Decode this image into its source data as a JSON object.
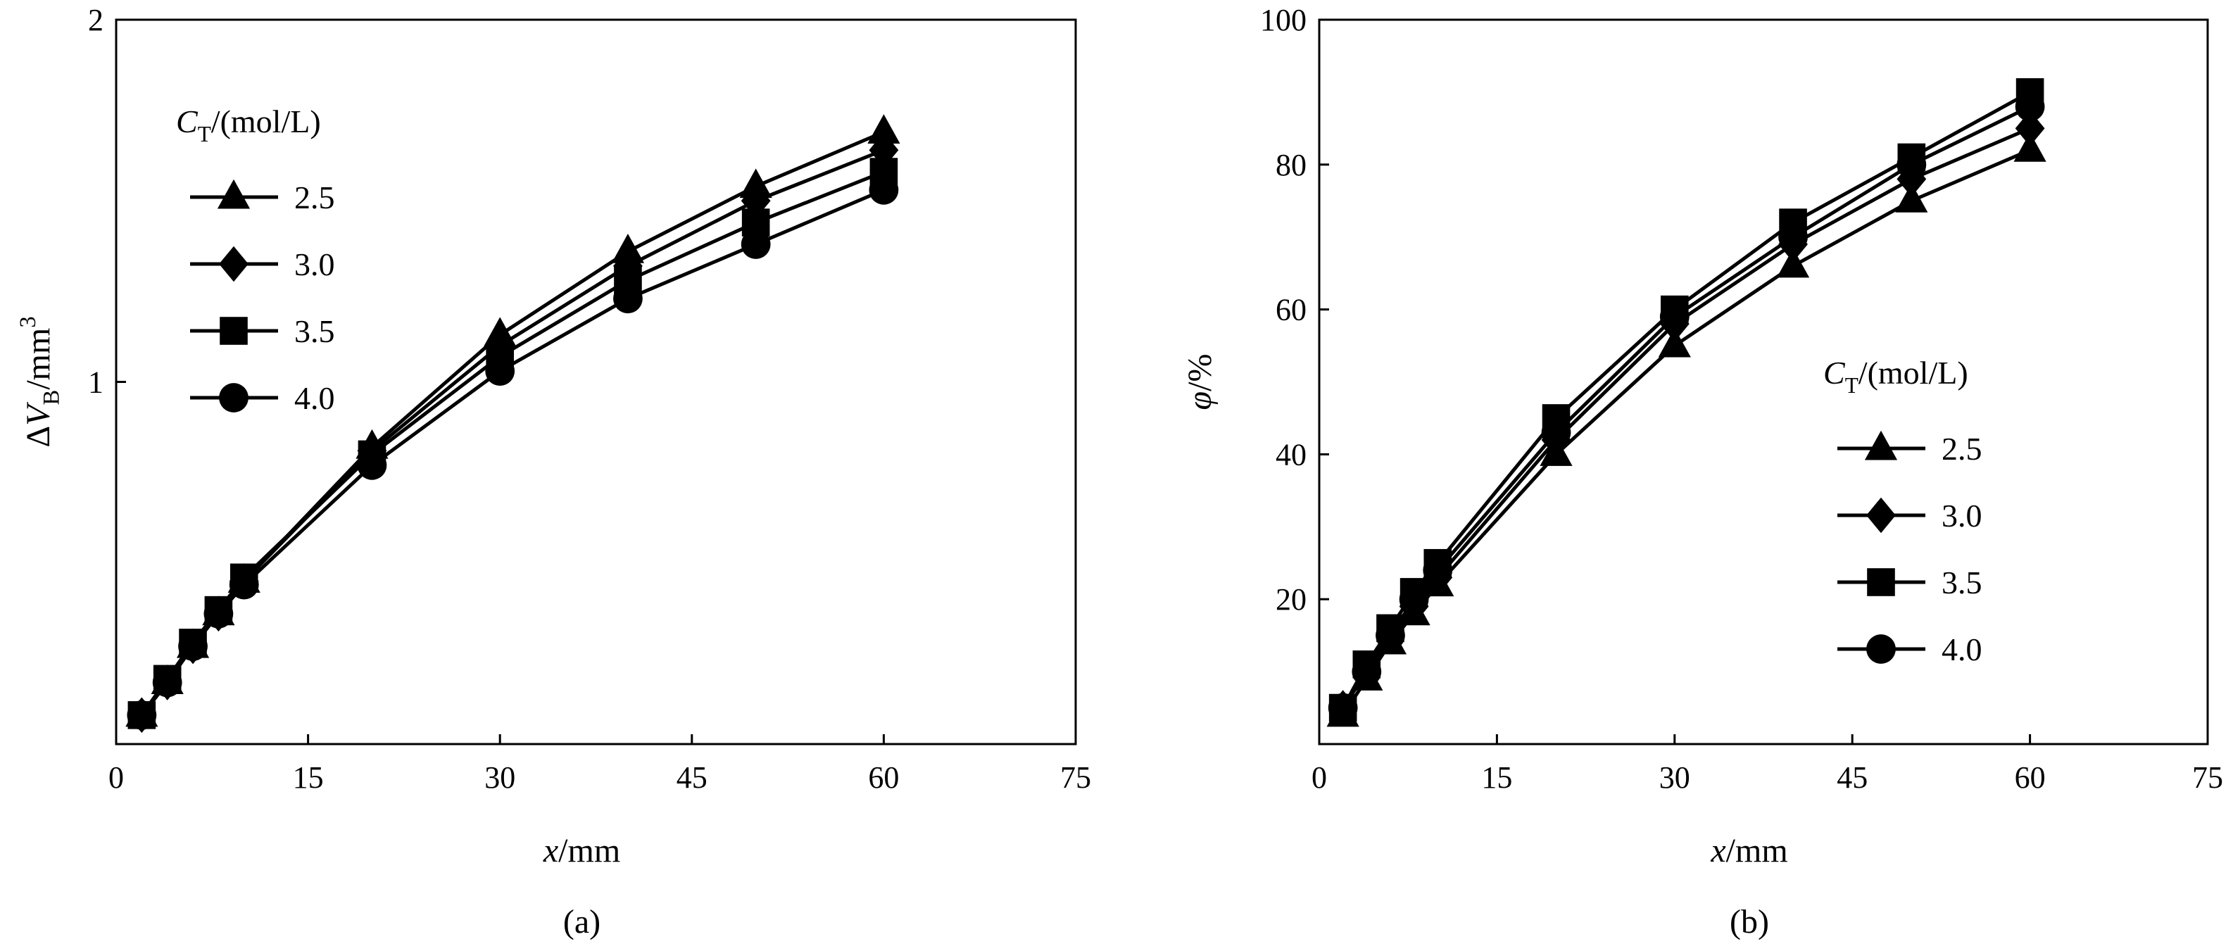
{
  "chart_data": [
    {
      "type": "line",
      "panel_label": "(a)",
      "xlabel": "x/mm",
      "ylabel": "ΔV_B/mm^3",
      "xlim": [
        0,
        75
      ],
      "ylim": [
        0,
        2
      ],
      "xticks": [
        0,
        15,
        30,
        45,
        60,
        75
      ],
      "yticks": [
        1,
        2
      ],
      "grid": false,
      "legend": {
        "title": "C_T/(mol/L)",
        "placement": "top-left"
      },
      "x": [
        2,
        4,
        6,
        8,
        10,
        20,
        30,
        40,
        50,
        60
      ],
      "series": [
        {
          "name": "2.5",
          "marker": "triangle",
          "values": [
            0.08,
            0.17,
            0.27,
            0.36,
            0.45,
            0.82,
            1.13,
            1.36,
            1.54,
            1.69
          ]
        },
        {
          "name": "3.0",
          "marker": "diamond",
          "values": [
            0.08,
            0.17,
            0.27,
            0.36,
            0.45,
            0.81,
            1.1,
            1.32,
            1.5,
            1.64
          ]
        },
        {
          "name": "3.5",
          "marker": "square",
          "values": [
            0.08,
            0.18,
            0.28,
            0.37,
            0.46,
            0.8,
            1.07,
            1.28,
            1.44,
            1.58
          ]
        },
        {
          "name": "4.0",
          "marker": "circle",
          "values": [
            0.08,
            0.17,
            0.27,
            0.36,
            0.44,
            0.77,
            1.03,
            1.23,
            1.38,
            1.53
          ]
        }
      ]
    },
    {
      "type": "line",
      "panel_label": "(b)",
      "xlabel": "x/mm",
      "ylabel": "φ/%",
      "xlim": [
        0,
        75
      ],
      "ylim": [
        0,
        100
      ],
      "xticks": [
        0,
        15,
        30,
        45,
        60,
        75
      ],
      "yticks": [
        20,
        40,
        60,
        80,
        100
      ],
      "grid": false,
      "legend": {
        "title": "C_T/(mol/L)",
        "placement": "bottom-right"
      },
      "x": [
        2,
        4,
        6,
        8,
        10,
        20,
        30,
        40,
        50,
        60
      ],
      "series": [
        {
          "name": "2.5",
          "marker": "triangle",
          "values": [
            4,
            9,
            14,
            18,
            22,
            40,
            55,
            66,
            75,
            82
          ]
        },
        {
          "name": "3.0",
          "marker": "diamond",
          "values": [
            5,
            10,
            15,
            19,
            23,
            42,
            58,
            69,
            78,
            85
          ]
        },
        {
          "name": "3.5",
          "marker": "square",
          "values": [
            5,
            11,
            16,
            21,
            25,
            45,
            60,
            72,
            81,
            90
          ]
        },
        {
          "name": "4.0",
          "marker": "circle",
          "values": [
            5,
            10,
            15,
            20,
            24,
            43,
            59,
            70,
            80,
            88
          ]
        }
      ]
    }
  ]
}
